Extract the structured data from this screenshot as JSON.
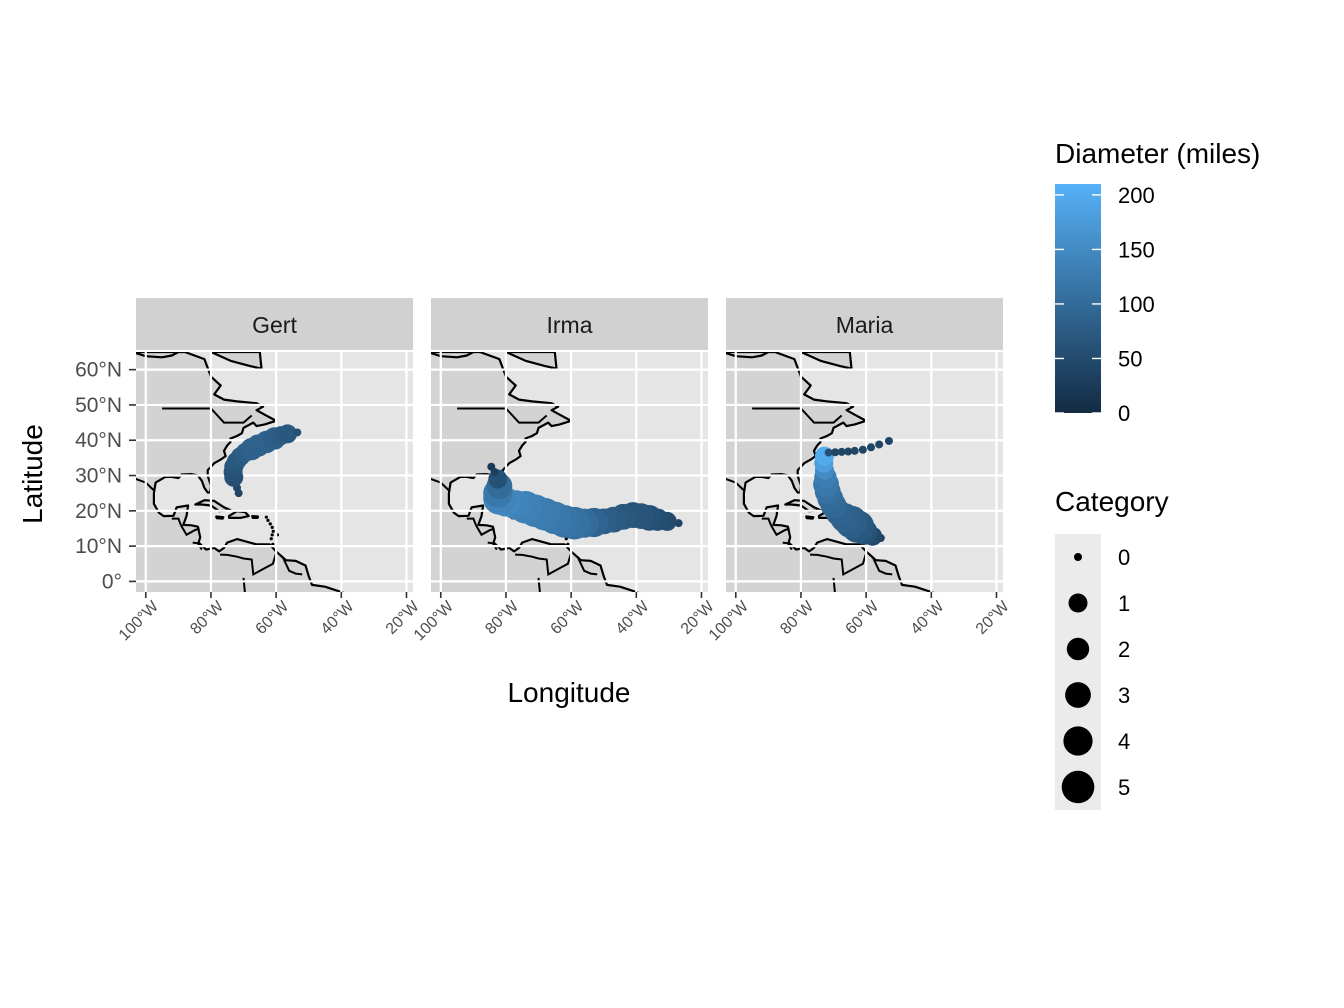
{
  "chart_data": {
    "type": "scatter",
    "title": "",
    "xlabel": "Longitude",
    "ylabel": "Latitude",
    "xlim": [
      -103,
      -18
    ],
    "ylim": [
      -3,
      65
    ],
    "x_ticks": [
      -100,
      -80,
      -60,
      -40,
      -20
    ],
    "x_tick_labels": [
      "100°W",
      "80°W",
      "60°W",
      "40°W",
      "20°W"
    ],
    "y_ticks": [
      0,
      10,
      20,
      30,
      40,
      50,
      60
    ],
    "y_tick_labels": [
      "0°",
      "10°N",
      "20°N",
      "30°N",
      "40°N",
      "50°N",
      "60°N"
    ],
    "grid": true,
    "colors": {
      "panel_bg": "#e5e5e5",
      "land": "#d3d3d3",
      "strip_bg": "#d1d1d1",
      "grid": "#ffffff",
      "low": "#132b43",
      "high": "#56b1f7"
    },
    "facets": [
      {
        "name": "Gert",
        "points": [
          {
            "lon": -71.5,
            "lat": 25.0,
            "cat": 0,
            "diam": 40
          },
          {
            "lon": -72.0,
            "lat": 26.5,
            "cat": 0,
            "diam": 45
          },
          {
            "lon": -72.6,
            "lat": 28.0,
            "cat": 0,
            "diam": 50
          },
          {
            "lon": -73.0,
            "lat": 29.5,
            "cat": 1,
            "diam": 55
          },
          {
            "lon": -73.2,
            "lat": 31.0,
            "cat": 1,
            "diam": 60
          },
          {
            "lon": -73.0,
            "lat": 32.5,
            "cat": 1,
            "diam": 65
          },
          {
            "lon": -72.2,
            "lat": 34.0,
            "cat": 1,
            "diam": 70
          },
          {
            "lon": -71.0,
            "lat": 35.3,
            "cat": 1,
            "diam": 75
          },
          {
            "lon": -69.5,
            "lat": 36.5,
            "cat": 1,
            "diam": 80
          },
          {
            "lon": -67.5,
            "lat": 37.5,
            "cat": 2,
            "diam": 85
          },
          {
            "lon": -65.5,
            "lat": 38.5,
            "cat": 2,
            "diam": 85
          },
          {
            "lon": -63.0,
            "lat": 39.5,
            "cat": 2,
            "diam": 85
          },
          {
            "lon": -60.5,
            "lat": 40.5,
            "cat": 2,
            "diam": 80
          },
          {
            "lon": -58.5,
            "lat": 41.3,
            "cat": 1,
            "diam": 75
          },
          {
            "lon": -56.5,
            "lat": 41.8,
            "cat": 1,
            "diam": 70
          },
          {
            "lon": -53.5,
            "lat": 42.2,
            "cat": 0,
            "diam": 60
          }
        ]
      },
      {
        "name": "Irma",
        "points": [
          {
            "lon": -27.0,
            "lat": 16.5,
            "cat": 0,
            "diam": 40
          },
          {
            "lon": -30.5,
            "lat": 17.0,
            "cat": 1,
            "diam": 50
          },
          {
            "lon": -33.5,
            "lat": 17.5,
            "cat": 2,
            "diam": 55
          },
          {
            "lon": -36.0,
            "lat": 18.0,
            "cat": 3,
            "diam": 60
          },
          {
            "lon": -38.5,
            "lat": 18.5,
            "cat": 3,
            "diam": 65
          },
          {
            "lon": -41.0,
            "lat": 18.8,
            "cat": 3,
            "diam": 65
          },
          {
            "lon": -44.0,
            "lat": 18.3,
            "cat": 3,
            "diam": 70
          },
          {
            "lon": -47.0,
            "lat": 17.5,
            "cat": 3,
            "diam": 75
          },
          {
            "lon": -50.0,
            "lat": 17.0,
            "cat": 3,
            "diam": 80
          },
          {
            "lon": -53.0,
            "lat": 16.7,
            "cat": 4,
            "diam": 90
          },
          {
            "lon": -56.0,
            "lat": 16.5,
            "cat": 4,
            "diam": 100
          },
          {
            "lon": -59.0,
            "lat": 16.5,
            "cat": 5,
            "diam": 110
          },
          {
            "lon": -62.0,
            "lat": 17.0,
            "cat": 5,
            "diam": 115
          },
          {
            "lon": -65.0,
            "lat": 18.0,
            "cat": 5,
            "diam": 120
          },
          {
            "lon": -68.0,
            "lat": 19.0,
            "cat": 5,
            "diam": 125
          },
          {
            "lon": -71.0,
            "lat": 20.0,
            "cat": 5,
            "diam": 130
          },
          {
            "lon": -74.0,
            "lat": 21.0,
            "cat": 5,
            "diam": 135
          },
          {
            "lon": -77.0,
            "lat": 21.7,
            "cat": 4,
            "diam": 140
          },
          {
            "lon": -80.0,
            "lat": 22.5,
            "cat": 4,
            "diam": 145
          },
          {
            "lon": -82.0,
            "lat": 23.5,
            "cat": 5,
            "diam": 140
          },
          {
            "lon": -82.5,
            "lat": 25.0,
            "cat": 4,
            "diam": 120
          },
          {
            "lon": -82.0,
            "lat": 27.0,
            "cat": 3,
            "diam": 100
          },
          {
            "lon": -82.5,
            "lat": 29.0,
            "cat": 1,
            "diam": 60
          },
          {
            "lon": -83.5,
            "lat": 31.0,
            "cat": 0,
            "diam": 30
          },
          {
            "lon": -84.5,
            "lat": 32.5,
            "cat": 0,
            "diam": 20
          }
        ]
      },
      {
        "name": "Maria",
        "points": [
          {
            "lon": -55.5,
            "lat": 12.3,
            "cat": 0,
            "diam": 30
          },
          {
            "lon": -58.0,
            "lat": 12.8,
            "cat": 1,
            "diam": 45
          },
          {
            "lon": -60.5,
            "lat": 14.0,
            "cat": 3,
            "diam": 60
          },
          {
            "lon": -62.5,
            "lat": 15.5,
            "cat": 5,
            "diam": 70
          },
          {
            "lon": -64.5,
            "lat": 16.8,
            "cat": 5,
            "diam": 80
          },
          {
            "lon": -66.5,
            "lat": 18.0,
            "cat": 4,
            "diam": 85
          },
          {
            "lon": -68.5,
            "lat": 19.5,
            "cat": 3,
            "diam": 90
          },
          {
            "lon": -70.0,
            "lat": 21.5,
            "cat": 3,
            "diam": 95
          },
          {
            "lon": -71.0,
            "lat": 23.5,
            "cat": 3,
            "diam": 100
          },
          {
            "lon": -71.8,
            "lat": 25.5,
            "cat": 3,
            "diam": 110
          },
          {
            "lon": -72.3,
            "lat": 27.5,
            "cat": 3,
            "diam": 120
          },
          {
            "lon": -72.5,
            "lat": 29.5,
            "cat": 2,
            "diam": 130
          },
          {
            "lon": -72.8,
            "lat": 31.5,
            "cat": 1,
            "diam": 150
          },
          {
            "lon": -73.0,
            "lat": 33.5,
            "cat": 1,
            "diam": 180
          },
          {
            "lon": -72.8,
            "lat": 35.5,
            "cat": 1,
            "diam": 200
          },
          {
            "lon": -71.5,
            "lat": 36.5,
            "cat": 0,
            "diam": 60
          },
          {
            "lon": -69.5,
            "lat": 36.6,
            "cat": 0,
            "diam": 40
          },
          {
            "lon": -67.5,
            "lat": 36.7,
            "cat": 0,
            "diam": 40
          },
          {
            "lon": -65.5,
            "lat": 36.8,
            "cat": 0,
            "diam": 40
          },
          {
            "lon": -63.5,
            "lat": 37.0,
            "cat": 0,
            "diam": 40
          },
          {
            "lon": -61.0,
            "lat": 37.3,
            "cat": 0,
            "diam": 40
          },
          {
            "lon": -58.5,
            "lat": 38.0,
            "cat": 0,
            "diam": 40
          },
          {
            "lon": -56.0,
            "lat": 38.8,
            "cat": 0,
            "diam": 40
          },
          {
            "lon": -53.0,
            "lat": 39.8,
            "cat": 0,
            "diam": 40
          }
        ]
      }
    ],
    "legend_color": {
      "title": "Diameter (miles)",
      "range": [
        0,
        210
      ],
      "breaks": [
        0,
        50,
        100,
        150,
        200
      ],
      "labels": [
        "0",
        "50",
        "100",
        "150",
        "200"
      ],
      "placement": "right"
    },
    "legend_size": {
      "title": "Category",
      "breaks": [
        0,
        1,
        2,
        3,
        4,
        5
      ],
      "labels": [
        "0",
        "1",
        "2",
        "3",
        "4",
        "5"
      ],
      "placement": "right"
    }
  }
}
